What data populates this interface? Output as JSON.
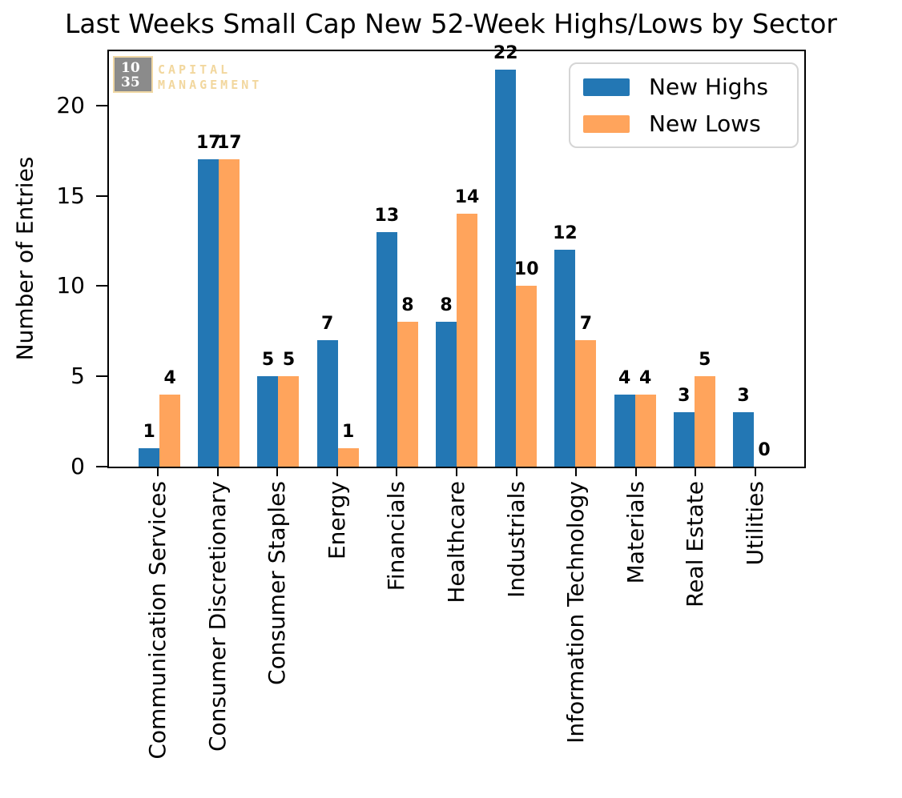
{
  "chart_data": {
    "type": "bar",
    "title": "Last Weeks Small Cap New 52-Week Highs/Lows by Sector",
    "xlabel": "",
    "ylabel": "Number of Entries",
    "categories": [
      "Communication Services",
      "Consumer Discretionary",
      "Consumer Staples",
      "Energy",
      "Financials",
      "Healthcare",
      "Industrials",
      "Information Technology",
      "Materials",
      "Real Estate",
      "Utilities"
    ],
    "series": [
      {
        "name": "New Highs",
        "color": "#2377b4",
        "values": [
          1,
          17,
          5,
          7,
          13,
          8,
          22,
          12,
          4,
          3,
          3
        ]
      },
      {
        "name": "New Lows",
        "color": "#ffa45c",
        "values": [
          4,
          17,
          5,
          1,
          8,
          14,
          10,
          7,
          4,
          5,
          0
        ]
      }
    ],
    "yticks": [
      0,
      5,
      10,
      15,
      20
    ],
    "ylim": [
      0,
      23
    ],
    "grid": false,
    "legend_position": "upper right",
    "bar_value_labels": true
  },
  "logo": {
    "badge_line1": "10",
    "badge_line2": "35",
    "word1": "CAPITAL",
    "word2": "MANAGEMENT",
    "badge_color": "#8b8b8b",
    "accent_color": "#f2d79e"
  }
}
